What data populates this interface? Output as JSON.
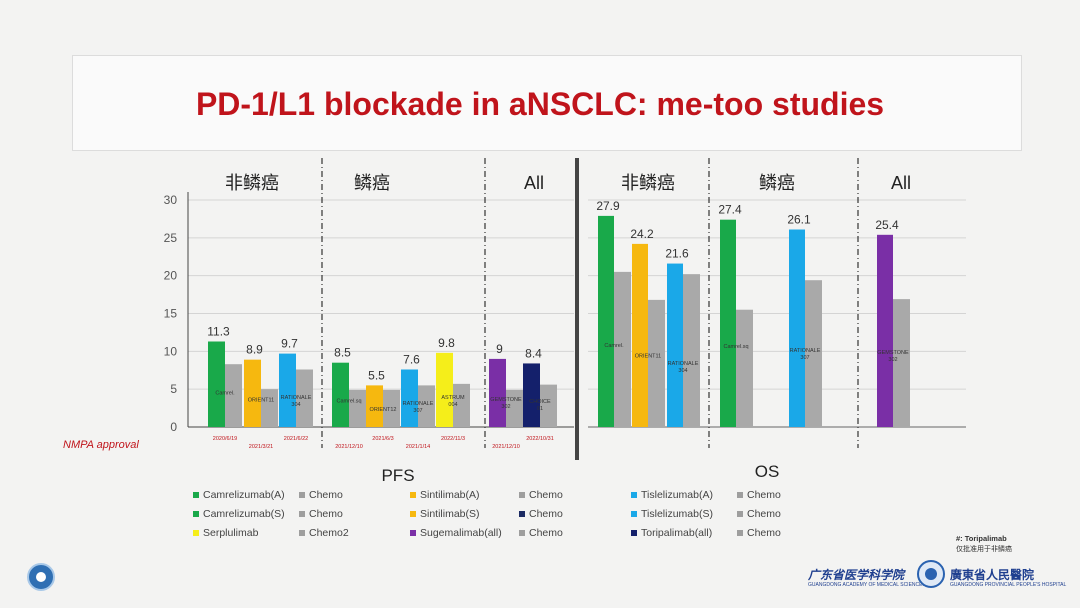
{
  "slide": {
    "title": "PD-1/L1 blockade in aNSCLC: me-too studies",
    "nmpa_label": "NMPA approval",
    "toripalimab_note": "#: Toripalimab",
    "toripalimab_note_sub": "仅批准用于非鳞癌"
  },
  "institutions": {
    "left_name": "广东省医学科学院",
    "left_sub": "GUANGDONG ACADEMY OF MEDICAL SCIENCES",
    "right_name": "廣東省人民醫院",
    "right_sub": "GUANGDONG PROVINCIAL PEOPLE'S HOSPITAL"
  },
  "legend": [
    {
      "label": "Camrelizumab(A)",
      "color": "#19a94a"
    },
    {
      "label": "Chemo",
      "color": "#9e9e9e"
    },
    {
      "label": "Sintilimab(A)",
      "color": "#f6b80f"
    },
    {
      "label": "Chemo",
      "color": "#9e9e9e"
    },
    {
      "label": "Tislelizumab(A)",
      "color": "#1aa8e8"
    },
    {
      "label": "Chemo",
      "color": "#9e9e9e"
    },
    {
      "label": "Camrelizumab(S)",
      "color": "#19a94a"
    },
    {
      "label": "Chemo",
      "color": "#9e9e9e"
    },
    {
      "label": "Sintilimab(S)",
      "color": "#f6b80f"
    },
    {
      "label": "Chemo",
      "color": "#1b2a63"
    },
    {
      "label": "Tislelizumab(S)",
      "color": "#1aa8e8"
    },
    {
      "label": "Chemo",
      "color": "#9e9e9e"
    },
    {
      "label": "Serplulimab",
      "color": "#f5ee1a"
    },
    {
      "label": "Chemo2",
      "color": "#9e9e9e"
    },
    {
      "label": "Sugemalimab(all)",
      "color": "#7a2fa6"
    },
    {
      "label": "Chemo",
      "color": "#9e9e9e"
    },
    {
      "label": "Toripalimab(all)",
      "color": "#14206b"
    },
    {
      "label": "Chemo",
      "color": "#9e9e9e"
    }
  ],
  "chart_data": [
    {
      "type": "bar",
      "title": "PFS",
      "ylim": [
        0,
        30
      ],
      "yticks": [
        0,
        5,
        10,
        15,
        20,
        25,
        30
      ],
      "grid": true,
      "groups": [
        "非鳞癌",
        "鳞癌",
        "All"
      ],
      "bars": [
        {
          "group": "非鳞癌",
          "label": "Camrel.",
          "value": 11.3,
          "chemo": 8.3,
          "color": "#19a94a",
          "date": "2020/6/19"
        },
        {
          "group": "非鳞癌",
          "label": "ORIENT11",
          "value": 8.9,
          "chemo": 5.0,
          "color": "#f6b80f",
          "date": "2021/3/21"
        },
        {
          "group": "非鳞癌",
          "label": "RATIONALE 304",
          "value": 9.7,
          "chemo": 7.6,
          "color": "#1aa8e8",
          "date": "2021/6/22"
        },
        {
          "group": "鳞癌",
          "label": "Camrel.sq",
          "value": 8.5,
          "chemo": 4.9,
          "color": "#19a94a",
          "date": "2021/12/10"
        },
        {
          "group": "鳞癌",
          "label": "ORIENT12",
          "value": 5.5,
          "chemo": 4.9,
          "color": "#f6b80f",
          "date": "2021/6/3"
        },
        {
          "group": "鳞癌",
          "label": "RATIONALE 307",
          "value": 7.6,
          "chemo": 5.5,
          "color": "#1aa8e8",
          "date": "2021/1/14"
        },
        {
          "group": "鳞癌",
          "label": "ASTRUM 004",
          "value": 9.8,
          "chemo": 5.7,
          "color": "#f5ee1a",
          "date": "2022/11/3"
        },
        {
          "group": "All",
          "label": "GEMSTONE 302",
          "value": 9,
          "chemo": 4.9,
          "color": "#7a2fa6",
          "date": "2021/12/10"
        },
        {
          "group": "All",
          "label": "CHOICE 01",
          "value": 8.4,
          "chemo": 5.6,
          "color": "#14206b",
          "date": "2022/10/31"
        }
      ]
    },
    {
      "type": "bar",
      "title": "OS",
      "ylim": [
        0,
        30
      ],
      "grid": true,
      "groups": [
        "非鳞癌",
        "鳞癌",
        "All"
      ],
      "bars": [
        {
          "group": "非鳞癌",
          "label": "Camrel.",
          "value": 27.9,
          "chemo": 20.5,
          "color": "#19a94a"
        },
        {
          "group": "非鳞癌",
          "label": "ORIENT11",
          "value": 24.2,
          "chemo": 16.8,
          "color": "#f6b80f"
        },
        {
          "group": "非鳞癌",
          "label": "RATIONALE 304",
          "value": 21.6,
          "chemo": 20.2,
          "color": "#1aa8e8"
        },
        {
          "group": "鳞癌",
          "label": "Camrel.sq",
          "value": 27.4,
          "chemo": 15.5,
          "color": "#19a94a"
        },
        {
          "group": "鳞癌",
          "label": "RATIONALE 307",
          "value": 26.1,
          "chemo": 19.4,
          "color": "#1aa8e8"
        },
        {
          "group": "All",
          "label": "GEMSTONE 302",
          "value": 25.4,
          "chemo": 16.9,
          "color": "#7a2fa6"
        }
      ]
    }
  ]
}
